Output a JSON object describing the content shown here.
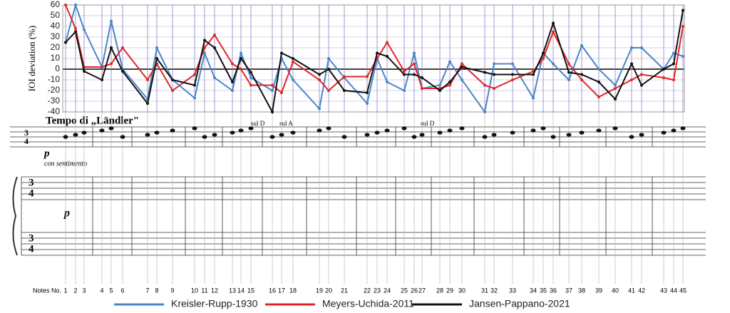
{
  "chart_data": {
    "type": "line",
    "y_label": "IOI deviation (%)",
    "x_label": "Notes No.",
    "categories": [
      1,
      2,
      3,
      4,
      5,
      6,
      7,
      8,
      9,
      10,
      11,
      12,
      13,
      14,
      15,
      16,
      17,
      18,
      19,
      20,
      21,
      22,
      23,
      24,
      25,
      26,
      27,
      28,
      29,
      30,
      31,
      32,
      33,
      34,
      35,
      36,
      37,
      38,
      39,
      40,
      41,
      42,
      43,
      44,
      45
    ],
    "series": [
      {
        "name": "Kreisler-Rupp-1930",
        "color": "#4a86c8",
        "values": [
          25,
          60,
          37,
          2,
          45,
          0,
          -28,
          20,
          -10,
          -27,
          15,
          -8,
          -20,
          15,
          -8,
          -20,
          10,
          -10,
          -37,
          10,
          -8,
          -32,
          10,
          -12,
          -20,
          15,
          -18,
          -15,
          7,
          -10,
          -40,
          5,
          5,
          -27,
          15,
          5,
          -10,
          22,
          0,
          -15,
          20,
          20,
          0,
          15,
          12
        ]
      },
      {
        "name": "Meyers-Uchida-2011",
        "color": "#e0262a",
        "values": [
          60,
          38,
          2,
          2,
          5,
          20,
          -10,
          5,
          -20,
          -5,
          20,
          32,
          5,
          0,
          -15,
          -15,
          -22,
          7,
          -10,
          -20,
          -7,
          -7,
          10,
          25,
          -2,
          5,
          -18,
          -18,
          -15,
          5,
          -15,
          -18,
          -10,
          -2,
          10,
          35,
          5,
          -10,
          -26,
          -18,
          -10,
          -5,
          -8,
          -10,
          40
        ]
      },
      {
        "name": "Jansen-Pappano-2021",
        "color": "#111111",
        "values": [
          25,
          35,
          -2,
          -10,
          20,
          -2,
          -32,
          10,
          -10,
          -15,
          27,
          20,
          -12,
          10,
          -3,
          -40,
          15,
          10,
          -5,
          0,
          -20,
          -22,
          15,
          12,
          -5,
          -5,
          -8,
          -20,
          -12,
          2,
          -3,
          -5,
          -5,
          -5,
          15,
          43,
          -3,
          -5,
          -12,
          -28,
          5,
          -15,
          0,
          5,
          55
        ]
      }
    ],
    "ylim": [
      -40,
      60
    ],
    "yticks": [
      60,
      50,
      40,
      30,
      20,
      10,
      0,
      -10,
      -20,
      -30,
      -40
    ],
    "grid": true
  },
  "score": {
    "tempo": "Tempo di „Ländler\"",
    "dynamic": "p",
    "expression": "con sentimento",
    "piano_dynamic": "p",
    "annotations": [
      "sul D",
      "sul A",
      "sul D"
    ],
    "time_signature": {
      "top": 3,
      "bottom": 4
    }
  }
}
